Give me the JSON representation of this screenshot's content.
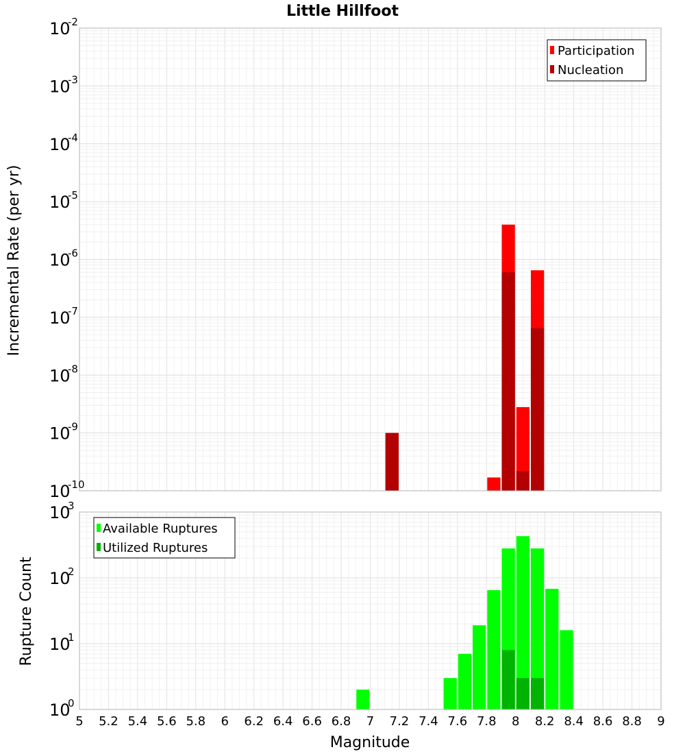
{
  "chart_data": [
    {
      "type": "bar",
      "title": "Little Hillfoot",
      "xlabel": "",
      "ylabel": "Incremental Rate (per yr)",
      "yscale": "log",
      "xlim": [
        5,
        9
      ],
      "ylim_exp": [
        -10,
        -2
      ],
      "legend_position": "top-right",
      "bin_width": 0.1,
      "series": [
        {
          "name": "Participation",
          "color": "#ff0000",
          "points": [
            {
              "x": 7.15,
              "y": 1e-09
            },
            {
              "x": 7.85,
              "y": 1.7e-10
            },
            {
              "x": 7.95,
              "y": 4e-06
            },
            {
              "x": 8.05,
              "y": 2.8e-09
            },
            {
              "x": 8.15,
              "y": 6.5e-07
            }
          ]
        },
        {
          "name": "Nucleation",
          "color": "#b30000",
          "points": [
            {
              "x": 7.15,
              "y": 1e-09
            },
            {
              "x": 7.95,
              "y": 6e-07
            },
            {
              "x": 8.05,
              "y": 2.2e-10
            },
            {
              "x": 8.15,
              "y": 6.5e-08
            }
          ]
        }
      ]
    },
    {
      "type": "bar",
      "title": "",
      "xlabel": "Magnitude",
      "ylabel": "Rupture Count",
      "yscale": "log",
      "xlim": [
        5,
        9
      ],
      "ylim_exp": [
        0,
        3
      ],
      "legend_position": "top-left",
      "bin_width": 0.1,
      "series": [
        {
          "name": "Available Ruptures",
          "color": "#00ff00",
          "points": [
            {
              "x": 6.95,
              "y": 2
            },
            {
              "x": 7.15,
              "y": 1
            },
            {
              "x": 7.25,
              "y": 1
            },
            {
              "x": 7.35,
              "y": 1
            },
            {
              "x": 7.55,
              "y": 3
            },
            {
              "x": 7.65,
              "y": 7
            },
            {
              "x": 7.75,
              "y": 19
            },
            {
              "x": 7.85,
              "y": 65
            },
            {
              "x": 7.95,
              "y": 280
            },
            {
              "x": 8.05,
              "y": 430
            },
            {
              "x": 8.15,
              "y": 280
            },
            {
              "x": 8.25,
              "y": 68
            },
            {
              "x": 8.35,
              "y": 16
            },
            {
              "x": 8.45,
              "y": 1
            }
          ]
        },
        {
          "name": "Utilized Ruptures",
          "color": "#00b300",
          "points": [
            {
              "x": 7.15,
              "y": 1
            },
            {
              "x": 7.85,
              "y": 1
            },
            {
              "x": 7.95,
              "y": 8
            },
            {
              "x": 8.05,
              "y": 3
            },
            {
              "x": 8.15,
              "y": 3
            }
          ]
        }
      ]
    }
  ],
  "xticks": [
    "5",
    "5.2",
    "5.4",
    "5.6",
    "5.8",
    "6",
    "6.2",
    "6.4",
    "6.6",
    "6.8",
    "7",
    "7.2",
    "7.4",
    "7.6",
    "7.8",
    "8",
    "8.2",
    "8.4",
    "8.6",
    "8.8",
    "9"
  ]
}
